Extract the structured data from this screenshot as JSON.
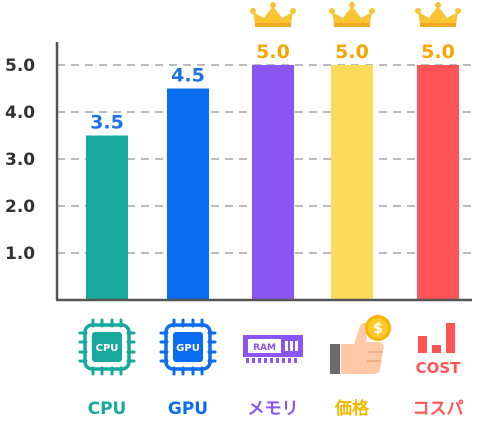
{
  "chart_data": {
    "type": "bar",
    "categories": [
      "CPU",
      "GPU",
      "メモリ",
      "価格",
      "コスパ"
    ],
    "values": [
      3.5,
      4.5,
      5.0,
      5.0,
      5.0
    ],
    "value_labels": [
      "3.5",
      "4.5",
      "5.0",
      "5.0",
      "5.0"
    ],
    "yticks": [
      "1.0",
      "2.0",
      "3.0",
      "4.0",
      "5.0"
    ],
    "ylim": [
      0,
      5.5
    ],
    "grid": true,
    "colors": [
      "#17a99b",
      "#0a6cf0",
      "#8b55f5",
      "#ffd95a",
      "#ff5356"
    ],
    "label_colors": [
      "#1a73e8",
      "#1a73e8",
      "#f7a600",
      "#f7a600",
      "#f7a600"
    ],
    "category_colors": [
      "#17a99b",
      "#0a6cf0",
      "#8b55f5",
      "#f2b900",
      "#ff5356"
    ],
    "crown_on": [
      false,
      false,
      true,
      true,
      true
    ],
    "icons": [
      {
        "name": "cpu-chip-icon",
        "text": "CPU"
      },
      {
        "name": "gpu-chip-icon",
        "text": "GPU"
      },
      {
        "name": "ram-module-icon",
        "text": "RAM"
      },
      {
        "name": "thumbs-up-coin-icon",
        "text": "$"
      },
      {
        "name": "cost-bars-icon",
        "text": "COST"
      }
    ]
  }
}
